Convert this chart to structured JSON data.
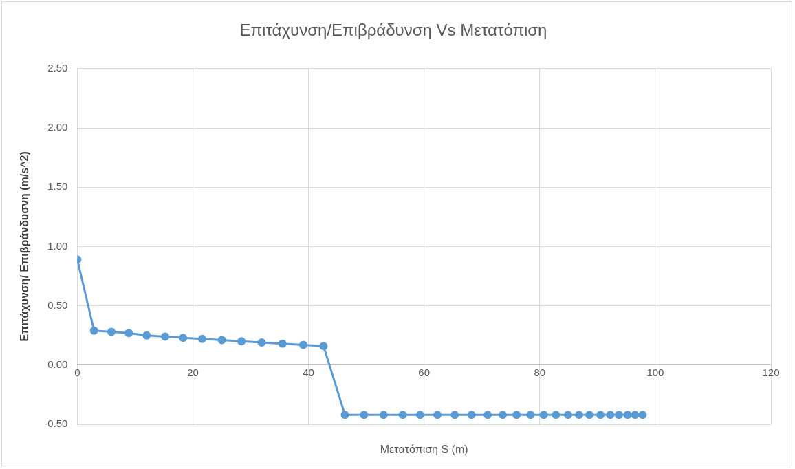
{
  "chart_data": {
    "type": "line",
    "title": "Επιτάχυνση/Επιβράδυνση Vs Μετατόπιση",
    "xlabel": "Μετατόπιση S (m)",
    "ylabel": "Επιτάχυνση/ Επιβράνδυσνη (m/s^2)",
    "series": [
      {
        "color": "#5b9bd5",
        "x": [
          0,
          2.9,
          5.9,
          8.9,
          12.0,
          15.2,
          18.3,
          21.6,
          25.0,
          28.4,
          31.9,
          35.5,
          39.1,
          42.6,
          46.3,
          49.6,
          53.0,
          56.3,
          59.3,
          62.3,
          65.3,
          68.2,
          71.0,
          73.6,
          76.0,
          78.4,
          80.7,
          82.8,
          84.9,
          86.8,
          88.6,
          90.5,
          92.2,
          93.7,
          95.2,
          96.5,
          97.8
        ],
        "values": [
          0.89,
          0.29,
          0.28,
          0.27,
          0.25,
          0.24,
          0.23,
          0.22,
          0.21,
          0.2,
          0.19,
          0.18,
          0.17,
          0.16,
          -0.42,
          -0.42,
          -0.42,
          -0.42,
          -0.42,
          -0.42,
          -0.42,
          -0.42,
          -0.42,
          -0.42,
          -0.42,
          -0.42,
          -0.42,
          -0.42,
          -0.42,
          -0.42,
          -0.42,
          -0.42,
          -0.42,
          -0.42,
          -0.42,
          -0.42,
          -0.42
        ]
      }
    ],
    "xlim": [
      0,
      120
    ],
    "xticks": [
      0,
      20,
      40,
      60,
      80,
      100,
      120
    ],
    "ylim": [
      -0.5,
      2.5
    ],
    "yticks": [
      {
        "value": -0.5,
        "label": "-0.50"
      },
      {
        "value": 0,
        "label": "0.00"
      },
      {
        "value": 0.5,
        "label": "0.50"
      },
      {
        "value": 1,
        "label": "1.00"
      },
      {
        "value": 1.5,
        "label": "1.50"
      },
      {
        "value": 2,
        "label": "2.00"
      },
      {
        "value": 2.5,
        "label": "2.50"
      }
    ],
    "grid": true,
    "legend": false,
    "marker": "circle",
    "line_style": "solid"
  }
}
